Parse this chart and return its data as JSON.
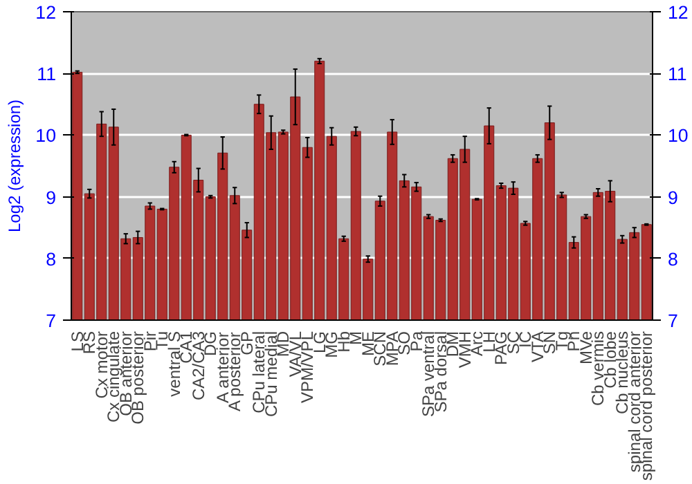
{
  "chart_data": {
    "type": "bar",
    "ylabel": "Log2 (expression)",
    "color": "#b0302e",
    "grid": "y",
    "categories": [
      "LS",
      "RS",
      "Cx motor",
      "Cx cingulate",
      "OB anterior",
      "OB posterior",
      "Pir",
      "Tu",
      "ventral S",
      "CA1",
      "CA2/CA3",
      "DG",
      "A anterior",
      "A posterior",
      "GP",
      "CPu lateral",
      "CPu medial",
      "MD",
      "VA/VL",
      "VPM/VPL",
      "LG",
      "MG",
      "Hb",
      "M",
      "ME",
      "SCN",
      "MPA",
      "SO",
      "Pa",
      "SPa ventral",
      "SPa dorsal",
      "DM",
      "VMH",
      "Arc",
      "LH",
      "PAG",
      "SC",
      "IC",
      "VTA",
      "SN",
      "Tg",
      "Pn",
      "MVe",
      "Cb vermis",
      "Cb lobe",
      "Cb nucleus",
      "spinal cord anterior",
      "spinal cord posterior"
    ],
    "values": [
      11.02,
      9.05,
      10.18,
      10.13,
      8.32,
      8.34,
      8.85,
      8.8,
      9.48,
      10.0,
      9.27,
      9.0,
      9.71,
      9.02,
      8.46,
      10.5,
      10.04,
      10.05,
      10.62,
      9.8,
      11.2,
      9.98,
      8.32,
      10.06,
      7.99,
      8.93,
      10.05,
      9.26,
      9.16,
      8.68,
      8.62,
      9.62,
      9.77,
      8.96,
      10.15,
      9.18,
      9.14,
      8.57,
      9.62,
      10.2,
      9.03,
      8.26,
      8.68,
      9.07,
      9.09,
      8.31,
      8.42,
      8.55
    ],
    "errors": [
      0.02,
      0.07,
      0.2,
      0.29,
      0.08,
      0.1,
      0.05,
      0.01,
      0.09,
      0.01,
      0.19,
      0.02,
      0.26,
      0.13,
      0.12,
      0.15,
      0.27,
      0.03,
      0.45,
      0.16,
      0.04,
      0.14,
      0.04,
      0.07,
      0.05,
      0.08,
      0.2,
      0.1,
      0.07,
      0.03,
      0.02,
      0.06,
      0.21,
      0.01,
      0.29,
      0.04,
      0.1,
      0.03,
      0.06,
      0.27,
      0.04,
      0.09,
      0.03,
      0.06,
      0.17,
      0.06,
      0.08,
      0.01
    ],
    "ylim": [
      7,
      12
    ],
    "yticks": [
      7,
      8,
      9,
      10,
      11,
      12
    ],
    "y2lim": [
      7,
      12
    ],
    "y2ticks": [
      7,
      8,
      9,
      10,
      11,
      12
    ]
  }
}
